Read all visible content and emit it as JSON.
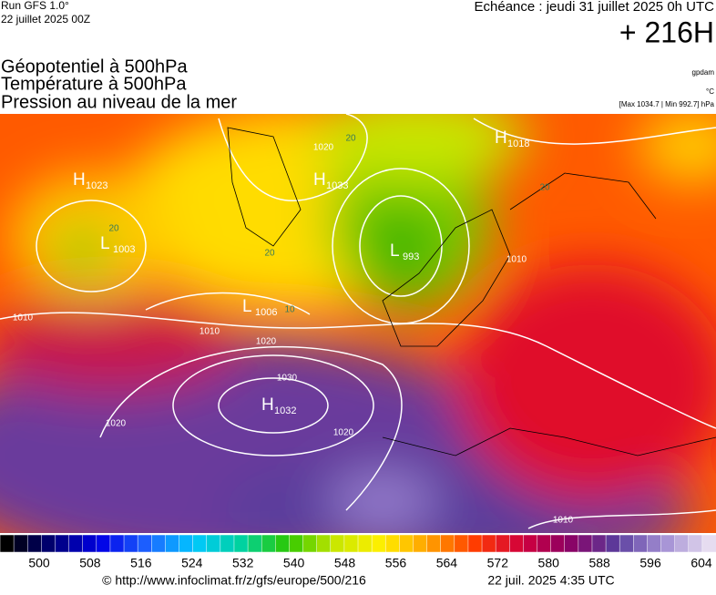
{
  "header": {
    "run": "Run GFS 1.0°",
    "run_date": "22 juillet 2025 00Z",
    "valid": "Echéance : jeudi 31 juillet 2025 0h UTC",
    "lead": "+ 216H",
    "fields": [
      "Géopotentiel à 500hPa",
      "Température à 500hPa",
      "Pression au niveau de la mer"
    ],
    "units": [
      "gpdam",
      "°C",
      "[Max 1034.7 | Min 992.7] hPa"
    ]
  },
  "pressure_centers": [
    {
      "kind": "H",
      "value": 1023
    },
    {
      "kind": "L",
      "value": 1003
    },
    {
      "kind": "L",
      "value": 1006
    },
    {
      "kind": "H",
      "value": 1033
    },
    {
      "kind": "L",
      "value": 993
    },
    {
      "kind": "H",
      "value": 1018
    },
    {
      "kind": "H",
      "value": 1032
    }
  ],
  "isobar_labels": [
    1020,
    1010,
    1010,
    1020,
    1030,
    1020,
    1020,
    1010,
    1010
  ],
  "temperature_labels": [
    20,
    20,
    20,
    20,
    10
  ],
  "colorbar": {
    "ticks": [
      500,
      508,
      516,
      524,
      532,
      540,
      548,
      556,
      564,
      572,
      580,
      588,
      596,
      604
    ],
    "colors": [
      "#000000",
      "#00007a",
      "#0000e6",
      "#1e64ff",
      "#00c8ff",
      "#00d2a0",
      "#2cc800",
      "#c8e600",
      "#fff000",
      "#ffa000",
      "#ff3c00",
      "#d2003c",
      "#8c0064",
      "#5a3c9c",
      "#a08cd2",
      "#e6dcf0"
    ]
  },
  "footer": {
    "source": "© http://www.infoclimat.fr/z/gfs/europe/500/216",
    "generated": "22 juil. 2025  4:35 UTC"
  }
}
